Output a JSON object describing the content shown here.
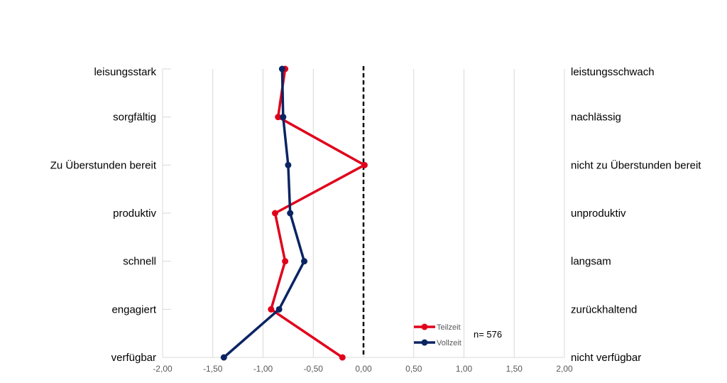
{
  "chart_data": {
    "type": "line",
    "orientation": "horizontal-profile",
    "categories_left": [
      "leisungsstark",
      "sorgfältig",
      "Zu Überstunden bereit",
      "produktiv",
      "schnell",
      "engagiert",
      "verfügbar"
    ],
    "categories_right": [
      "leistungsschwach",
      "nachlässig",
      "nicht zu Überstunden bereit",
      "unproduktiv",
      "langsam",
      "zurückhaltend",
      "nicht verfügbar"
    ],
    "x_ticks": [
      "-2,00",
      "-1,50",
      "-1,00",
      "-0,50",
      "0,00",
      "0,50",
      "1,00",
      "1,50",
      "2,00"
    ],
    "xlim": [
      -2,
      2
    ],
    "reference_line": 0,
    "grid": "vertical",
    "series": [
      {
        "name": "Teilzeit",
        "color": "#e0001b",
        "values": [
          -0.78,
          -0.85,
          0.01,
          -0.88,
          -0.78,
          -0.92,
          -0.21
        ]
      },
      {
        "name": "Vollzeit",
        "color": "#0a2463",
        "values": [
          -0.81,
          -0.8,
          -0.75,
          -0.73,
          -0.59,
          -0.84,
          -1.39
        ]
      }
    ],
    "legend_position": "bottom-right",
    "annotation": "n= 576"
  }
}
